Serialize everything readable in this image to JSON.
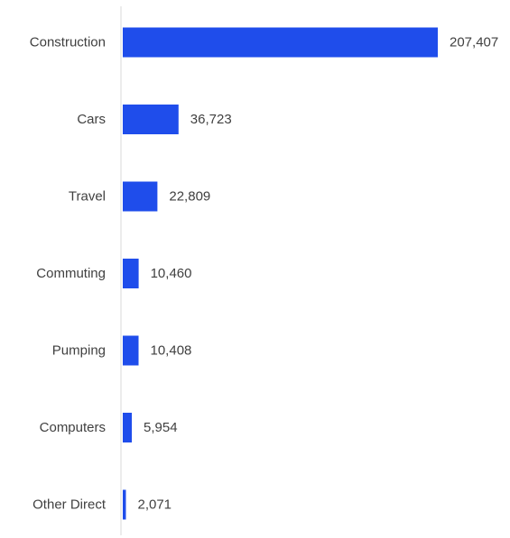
{
  "chart_data": {
    "type": "bar",
    "orientation": "horizontal",
    "categories": [
      "Construction",
      "Cars",
      "Travel",
      "Commuting",
      "Pumping",
      "Computers",
      "Other Direct"
    ],
    "values": [
      207407,
      36723,
      22809,
      10460,
      10408,
      5954,
      2071
    ],
    "value_labels": [
      "207,407",
      "36,723",
      "22,809",
      "10,460",
      "10,408",
      "5,954",
      "2,071"
    ],
    "bar_color": "#1F4DEB",
    "axis_color": "#D9D9D9",
    "text_color": "#404040",
    "grid": false,
    "legend": "none"
  }
}
